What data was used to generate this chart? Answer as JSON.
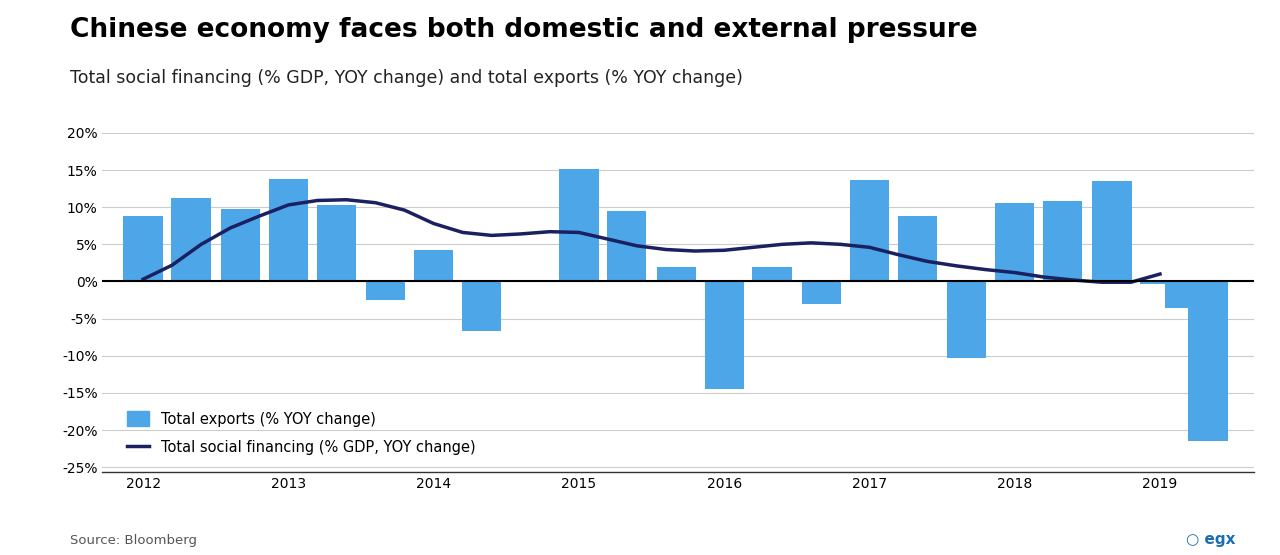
{
  "title": "Chinese economy faces both domestic and external pressure",
  "subtitle": "Total social financing (% GDP, YOY change) and total exports (% YOY change)",
  "source": "Source: Bloomberg",
  "bar_color": "#4da6e8",
  "line_color": "#1a2060",
  "background_color": "#ffffff",
  "ylim": [
    -0.256,
    0.207
  ],
  "yticks": [
    -0.25,
    -0.2,
    -0.15,
    -0.1,
    -0.05,
    0.0,
    0.05,
    0.1,
    0.15,
    0.2
  ],
  "ytick_labels": [
    "-25%",
    "-20%",
    "-15%",
    "-10%",
    "-5%",
    "0%",
    "5%",
    "10%",
    "15%",
    "20%"
  ],
  "bar_x": [
    2012.0,
    2012.33,
    2012.67,
    2013.0,
    2013.33,
    2013.67,
    2014.0,
    2014.33,
    2014.67,
    2015.0,
    2015.33,
    2015.67,
    2016.0,
    2016.33,
    2016.67,
    2017.0,
    2017.33,
    2017.67,
    2018.0,
    2018.33,
    2018.67,
    2019.0,
    2019.17,
    2019.33
  ],
  "bar_values": [
    0.088,
    0.112,
    0.098,
    0.138,
    0.103,
    -0.025,
    0.042,
    -0.066,
    -0.001,
    0.152,
    0.095,
    0.02,
    -0.145,
    0.02,
    -0.03,
    0.136,
    0.088,
    -0.103,
    0.106,
    0.108,
    0.135,
    -0.004,
    -0.035,
    -0.215
  ],
  "line_x": [
    2012.0,
    2012.2,
    2012.4,
    2012.6,
    2012.8,
    2013.0,
    2013.2,
    2013.4,
    2013.6,
    2013.8,
    2014.0,
    2014.2,
    2014.4,
    2014.6,
    2014.8,
    2015.0,
    2015.2,
    2015.4,
    2015.6,
    2015.8,
    2016.0,
    2016.2,
    2016.4,
    2016.6,
    2016.8,
    2017.0,
    2017.2,
    2017.4,
    2017.6,
    2017.8,
    2018.0,
    2018.2,
    2018.4,
    2018.6,
    2018.8,
    2019.0
  ],
  "line_values": [
    0.003,
    0.022,
    0.05,
    0.072,
    0.088,
    0.103,
    0.109,
    0.11,
    0.106,
    0.096,
    0.078,
    0.066,
    0.062,
    0.064,
    0.067,
    0.066,
    0.057,
    0.048,
    0.043,
    0.041,
    0.042,
    0.046,
    0.05,
    0.052,
    0.05,
    0.046,
    0.036,
    0.027,
    0.021,
    0.016,
    0.012,
    0.006,
    0.002,
    -0.001,
    -0.001,
    0.01
  ],
  "legend_exports": "Total exports (% YOY change)",
  "legend_financing": "Total social financing (% GDP, YOY change)",
  "xticks": [
    2012,
    2013,
    2014,
    2015,
    2016,
    2017,
    2018,
    2019
  ],
  "title_fontsize": 19,
  "subtitle_fontsize": 12.5,
  "bar_width": 0.27
}
